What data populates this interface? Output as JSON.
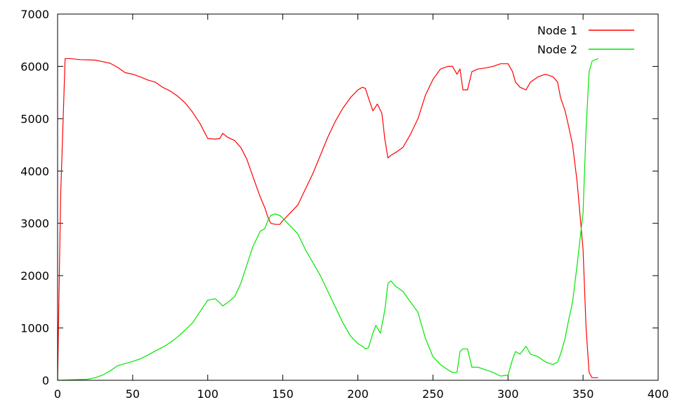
{
  "colors": {
    "node1": "#ff0000",
    "node2": "#00e600",
    "frame": "#000000"
  },
  "chart_data": {
    "type": "line",
    "title": "",
    "xlabel": "",
    "ylabel": "",
    "xlim": [
      0,
      400
    ],
    "ylim": [
      0,
      7000
    ],
    "xticks": [
      0,
      50,
      100,
      150,
      200,
      250,
      300,
      350,
      400
    ],
    "yticks": [
      0,
      1000,
      2000,
      3000,
      4000,
      5000,
      6000,
      7000
    ],
    "xtick_labels": [
      "0",
      "50",
      "100",
      "150",
      "200",
      "250",
      "300",
      "350",
      "400"
    ],
    "ytick_labels": [
      "0",
      "1000",
      "2000",
      "3000",
      "4000",
      "5000",
      "6000",
      "7000"
    ],
    "grid": false,
    "legend_position": "top-right",
    "series": [
      {
        "name": "Node 1",
        "color": "#ff0000",
        "x": [
          0,
          2,
          5,
          8,
          15,
          25,
          30,
          35,
          40,
          45,
          50,
          55,
          60,
          65,
          70,
          75,
          80,
          85,
          90,
          95,
          100,
          105,
          108,
          110,
          113,
          118,
          122,
          126,
          130,
          135,
          138,
          140,
          142,
          145,
          148,
          150,
          155,
          160,
          165,
          170,
          175,
          180,
          185,
          190,
          195,
          200,
          203,
          205,
          207,
          210,
          213,
          216,
          218,
          220,
          222,
          225,
          230,
          235,
          240,
          245,
          250,
          255,
          260,
          263,
          266,
          268,
          270,
          273,
          276,
          280,
          285,
          290,
          295,
          300,
          303,
          305,
          308,
          312,
          315,
          320,
          325,
          330,
          333,
          335,
          338,
          340,
          343,
          346,
          350,
          352,
          354,
          356,
          360
        ],
        "y": [
          0,
          3500,
          6150,
          6150,
          6130,
          6120,
          6090,
          6060,
          5980,
          5880,
          5850,
          5800,
          5740,
          5700,
          5600,
          5530,
          5430,
          5300,
          5120,
          4900,
          4620,
          4610,
          4620,
          4720,
          4650,
          4580,
          4450,
          4230,
          3900,
          3500,
          3300,
          3120,
          3000,
          2980,
          2980,
          3050,
          3200,
          3350,
          3650,
          3950,
          4300,
          4650,
          4950,
          5200,
          5400,
          5550,
          5600,
          5580,
          5400,
          5150,
          5280,
          5100,
          4600,
          4250,
          4300,
          4350,
          4450,
          4700,
          5000,
          5450,
          5750,
          5950,
          6000,
          6000,
          5850,
          5950,
          5550,
          5550,
          5900,
          5950,
          5970,
          6000,
          6050,
          6050,
          5900,
          5700,
          5600,
          5550,
          5700,
          5800,
          5850,
          5800,
          5700,
          5400,
          5150,
          4900,
          4500,
          3800,
          2500,
          1000,
          150,
          50,
          50
        ]
      },
      {
        "name": "Node 2",
        "color": "#00e600",
        "x": [
          0,
          20,
          25,
          30,
          35,
          40,
          45,
          50,
          55,
          60,
          65,
          70,
          75,
          80,
          85,
          90,
          95,
          100,
          105,
          108,
          110,
          113,
          118,
          122,
          126,
          130,
          135,
          138,
          140,
          142,
          145,
          148,
          150,
          155,
          160,
          165,
          170,
          175,
          180,
          185,
          190,
          195,
          200,
          203,
          205,
          207,
          210,
          212,
          215,
          218,
          220,
          222,
          225,
          230,
          235,
          240,
          245,
          250,
          255,
          260,
          263,
          266,
          268,
          270,
          273,
          276,
          280,
          285,
          290,
          295,
          300,
          303,
          305,
          308,
          312,
          315,
          320,
          325,
          330,
          333,
          335,
          338,
          340,
          343,
          346,
          350,
          352,
          354,
          356,
          360
        ],
        "y": [
          0,
          20,
          50,
          100,
          180,
          280,
          320,
          360,
          410,
          480,
          560,
          630,
          720,
          830,
          960,
          1100,
          1320,
          1530,
          1560,
          1480,
          1420,
          1480,
          1600,
          1850,
          2200,
          2550,
          2850,
          2900,
          3050,
          3150,
          3180,
          3150,
          3100,
          2950,
          2800,
          2500,
          2250,
          2000,
          1700,
          1400,
          1100,
          850,
          700,
          650,
          600,
          620,
          900,
          1050,
          900,
          1350,
          1850,
          1900,
          1800,
          1700,
          1500,
          1300,
          800,
          450,
          300,
          200,
          150,
          150,
          550,
          600,
          600,
          250,
          250,
          200,
          150,
          80,
          100,
          400,
          550,
          500,
          650,
          500,
          450,
          350,
          300,
          350,
          500,
          800,
          1100,
          1500,
          2200,
          3200,
          4800,
          5900,
          6100,
          6150
        ]
      }
    ]
  }
}
